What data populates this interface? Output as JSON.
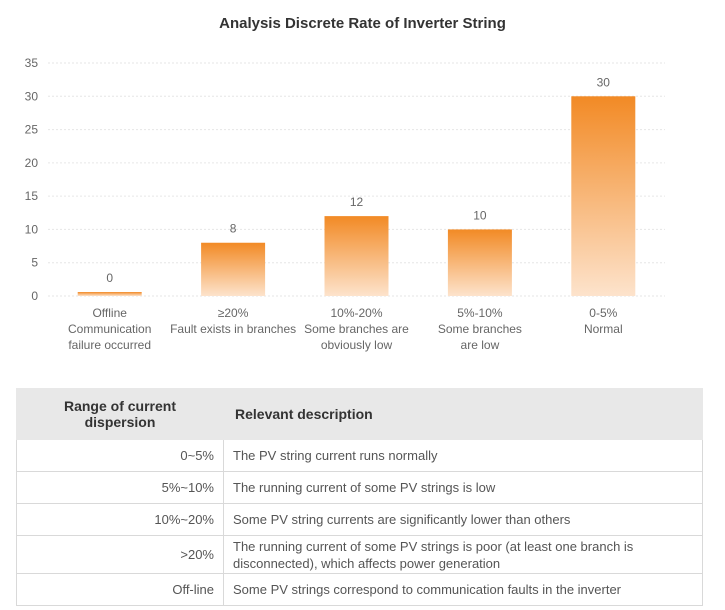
{
  "chart_data": {
    "type": "bar",
    "title": "Analysis Discrete Rate of Inverter String",
    "categories": [
      [
        "Offline",
        "Communication",
        "failure occurred"
      ],
      [
        "≥20%",
        "Fault exists in branches"
      ],
      [
        "10%-20%",
        "Some branches are",
        "obviously low"
      ],
      [
        "5%-10%",
        "Some branches",
        "are low"
      ],
      [
        "0-5%",
        "Normal"
      ]
    ],
    "values": [
      0,
      8,
      12,
      10,
      30
    ],
    "data_labels": [
      "0",
      "8",
      "12",
      "10",
      "30"
    ],
    "yticks": [
      0,
      5,
      10,
      15,
      20,
      25,
      30,
      35
    ],
    "ylim": [
      0,
      35
    ],
    "xlabel": "",
    "ylabel": "",
    "grid": true,
    "bar_color_top": "#f28a25",
    "bar_color_bottom": "#fde3cc",
    "grid_color": "#e6e6e6"
  },
  "table": {
    "headers": [
      "Range of current dispersion",
      "Relevant description"
    ],
    "rows": [
      {
        "range": "0~5%",
        "description": "The PV string current runs normally"
      },
      {
        "range": "5%~10%",
        "description": "The running current of some PV strings is low"
      },
      {
        "range": "10%~20%",
        "description": "Some PV string currents are significantly lower than others"
      },
      {
        "range": ">20%",
        "description": "The running current of some PV strings is poor (at least one branch is disconnected), which affects power generation"
      },
      {
        "range": "Off-line",
        "description": "Some PV strings correspond to communication faults in the inverter"
      }
    ]
  }
}
